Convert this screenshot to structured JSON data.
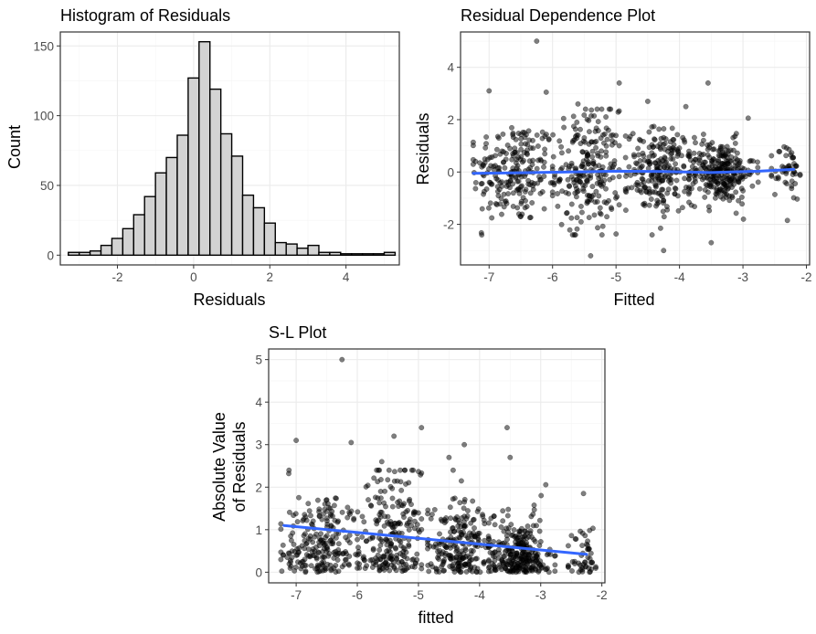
{
  "chart_data": [
    {
      "id": "hist",
      "type": "bar",
      "title": "Histogram of Residuals",
      "xlabel": "Residuals",
      "ylabel": "Count",
      "xlim": [
        -3.5,
        5.4
      ],
      "ylim": [
        -7,
        160
      ],
      "xticks": [
        -2,
        0,
        2,
        4
      ],
      "xtick_labels": [
        "-2",
        "0",
        "2",
        "4"
      ],
      "yticks": [
        0,
        50,
        100,
        150
      ],
      "ytick_labels": [
        "0",
        "50",
        "100",
        "150"
      ],
      "bin_width": 0.286,
      "bin_starts": [
        -3.29,
        -3.004,
        -2.718,
        -2.432,
        -2.146,
        -1.86,
        -1.574,
        -1.288,
        -1.002,
        -0.716,
        -0.43,
        -0.144,
        0.142,
        0.428,
        0.714,
        1.0,
        1.286,
        1.572,
        1.858,
        2.144,
        2.43,
        2.716,
        3.002,
        3.288,
        3.574,
        3.86,
        4.146,
        4.432,
        4.718,
        5.004
      ],
      "values": [
        2,
        2,
        3,
        7,
        12,
        19,
        29,
        42,
        59,
        70,
        86,
        127,
        153,
        119,
        87,
        71,
        43,
        34,
        23,
        9,
        8,
        5,
        7,
        2,
        2,
        1,
        1,
        1,
        1,
        2
      ]
    },
    {
      "id": "resid",
      "type": "scatter",
      "title": "Residual Dependence Plot",
      "xlabel": "Fitted",
      "ylabel": "Residuals",
      "xlim": [
        -7.45,
        -1.95
      ],
      "ylim": [
        -3.55,
        5.35
      ],
      "xticks": [
        -7,
        -6,
        -5,
        -4,
        -3,
        -2
      ],
      "xtick_labels": [
        "-7",
        "-6",
        "-5",
        "-4",
        "-3",
        "-2"
      ],
      "yticks": [
        -2,
        0,
        2,
        4
      ],
      "ytick_labels": [
        "-2",
        "0",
        "2",
        "4"
      ],
      "n_points": 1000,
      "clusters": [
        {
          "x_range": [
            -7.25,
            -5.85
          ],
          "x_mean": -6.6,
          "y_mean": 0.0,
          "y_sd": 1.0,
          "share": 0.22
        },
        {
          "x_range": [
            -6.0,
            -4.95
          ],
          "x_mean": -5.45,
          "y_mean": 0.05,
          "y_sd": 1.15,
          "share": 0.23
        },
        {
          "x_range": [
            -4.85,
            -3.75
          ],
          "x_mean": -4.3,
          "y_mean": 0.05,
          "y_sd": 0.8,
          "share": 0.23
        },
        {
          "x_range": [
            -3.85,
            -2.75
          ],
          "x_mean": -3.35,
          "y_mean": 0.0,
          "y_sd": 0.6,
          "share": 0.27
        },
        {
          "x_range": [
            -2.55,
            -2.1
          ],
          "x_mean": -2.3,
          "y_mean": 0.0,
          "y_sd": 0.55,
          "share": 0.05
        }
      ],
      "highlight_points": [
        {
          "x": -6.25,
          "y": 5.0
        },
        {
          "x": -4.95,
          "y": 3.4
        },
        {
          "x": -3.55,
          "y": 3.4
        },
        {
          "x": -7.0,
          "y": 3.1
        },
        {
          "x": -6.1,
          "y": 3.05
        },
        {
          "x": -5.6,
          "y": 2.6
        },
        {
          "x": -4.5,
          "y": 2.7
        },
        {
          "x": -3.9,
          "y": 2.5
        },
        {
          "x": -4.25,
          "y": -3.0
        },
        {
          "x": -5.4,
          "y": -3.2
        },
        {
          "x": -3.5,
          "y": -2.7
        },
        {
          "x": -2.3,
          "y": -1.85
        }
      ],
      "smooth": {
        "x": [
          -7.25,
          -6.5,
          -5.75,
          -5.0,
          -4.25,
          -3.5,
          -2.75,
          -2.2
        ],
        "y": [
          -0.05,
          -0.03,
          0.0,
          0.03,
          0.02,
          -0.02,
          0.03,
          0.1
        ],
        "color": "#3366ff"
      }
    },
    {
      "id": "sl",
      "type": "scatter",
      "title": "S-L Plot",
      "xlabel": "fitted",
      "ylabel": [
        "Absolute Value",
        "of Residuals"
      ],
      "xlim": [
        -7.45,
        -1.95
      ],
      "ylim": [
        -0.25,
        5.25
      ],
      "xticks": [
        -7,
        -6,
        -5,
        -4,
        -3,
        -2
      ],
      "xtick_labels": [
        "-7",
        "-6",
        "-5",
        "-4",
        "-3",
        "-2"
      ],
      "yticks": [
        0,
        1,
        2,
        3,
        4,
        5
      ],
      "ytick_labels": [
        "0",
        "1",
        "2",
        "3",
        "4",
        "5"
      ],
      "n_points": 1000,
      "clusters": [
        {
          "x_range": [
            -7.25,
            -5.85
          ],
          "x_mean": -6.6,
          "y_mean": 0.0,
          "y_sd": 1.0,
          "share": 0.22
        },
        {
          "x_range": [
            -6.0,
            -4.95
          ],
          "x_mean": -5.45,
          "y_mean": 0.05,
          "y_sd": 1.15,
          "share": 0.23
        },
        {
          "x_range": [
            -4.85,
            -3.75
          ],
          "x_mean": -4.3,
          "y_mean": 0.05,
          "y_sd": 0.8,
          "share": 0.23
        },
        {
          "x_range": [
            -3.85,
            -2.75
          ],
          "x_mean": -3.35,
          "y_mean": 0.0,
          "y_sd": 0.6,
          "share": 0.27
        },
        {
          "x_range": [
            -2.55,
            -2.1
          ],
          "x_mean": -2.3,
          "y_mean": 0.0,
          "y_sd": 0.55,
          "share": 0.05
        }
      ],
      "highlight_points": [
        {
          "x": -6.25,
          "y": 5.0
        },
        {
          "x": -4.95,
          "y": 3.4
        },
        {
          "x": -3.55,
          "y": 3.4
        },
        {
          "x": -7.0,
          "y": 3.1
        },
        {
          "x": -6.1,
          "y": 3.05
        },
        {
          "x": -5.4,
          "y": 3.2
        },
        {
          "x": -4.25,
          "y": 3.0
        },
        {
          "x": -4.5,
          "y": 2.7
        },
        {
          "x": -5.6,
          "y": 2.6
        },
        {
          "x": -3.5,
          "y": 2.7
        },
        {
          "x": -2.3,
          "y": 1.85
        }
      ],
      "smooth": {
        "x": [
          -7.2,
          -2.25
        ],
        "y": [
          1.1,
          0.42
        ],
        "color": "#3366ff"
      }
    }
  ]
}
